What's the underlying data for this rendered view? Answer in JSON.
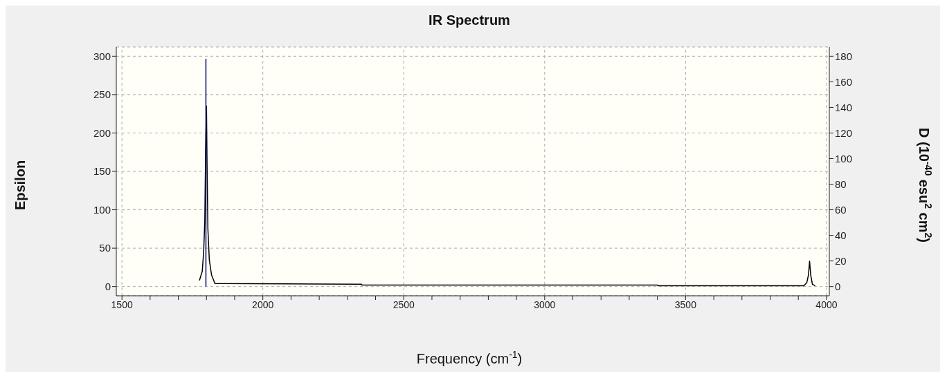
{
  "chart_data": {
    "type": "line",
    "title": "IR Spectrum",
    "xlabel": "Frequency (cm$^{-1}$)",
    "ylabel": "Epsilon",
    "y2label": "D (10$^{-40}$ esu$^{2}$ cm$^{2}$)",
    "xlim": [
      1480,
      4010
    ],
    "xticks": [
      1500,
      {
        "value": 1600,
        "label": null
      },
      {
        "value": 1700,
        "label": null
      },
      {
        "value": 1800,
        "label": null
      },
      {
        "value": 1900,
        "label": null
      },
      2000,
      {
        "value": 2100,
        "label": null
      },
      {
        "value": 2200,
        "label": null
      },
      {
        "value": 2300,
        "label": null
      },
      {
        "value": 2400,
        "label": null
      },
      2500,
      {
        "value": 2600,
        "label": null
      },
      {
        "value": 2700,
        "label": null
      },
      {
        "value": 2800,
        "label": null
      },
      {
        "value": 2900,
        "label": null
      },
      3000,
      {
        "value": 3100,
        "label": null
      },
      {
        "value": 3200,
        "label": null
      },
      {
        "value": 3300,
        "label": null
      },
      {
        "value": 3400,
        "label": null
      },
      3500,
      {
        "value": 3600,
        "label": null
      },
      {
        "value": 3700,
        "label": null
      },
      {
        "value": 3800,
        "label": null
      },
      {
        "value": 3900,
        "label": null
      },
      4000
    ],
    "ylim": [
      -12,
      312
    ],
    "yticks": [
      0,
      50,
      100,
      150,
      200,
      250,
      300
    ],
    "y2lim": [
      -7.2,
      187.2
    ],
    "y2ticks": [
      0,
      20,
      40,
      60,
      80,
      100,
      120,
      140,
      160,
      180
    ],
    "grid": true,
    "legend": false,
    "marker": "none",
    "line_style": "solid",
    "series": [
      {
        "color": "#000000",
        "x": [
          1775,
          1785,
          1790,
          1794,
          1797,
          1800,
          1802,
          1805,
          1810,
          1818,
          1830,
          2350,
          2352,
          3400,
          3402,
          3920,
          3930,
          3936,
          3940,
          3944,
          3950,
          3960
        ],
        "values": [
          8,
          20,
          45,
          85,
          180,
          235,
          160,
          75,
          35,
          15,
          4,
          3,
          2,
          2,
          1,
          1,
          5,
          15,
          33,
          15,
          3,
          1
        ]
      },
      {
        "color": "#000080",
        "axis": "y2",
        "x": [
          1798,
          1798
        ],
        "values": [
          0,
          178
        ]
      }
    ]
  }
}
